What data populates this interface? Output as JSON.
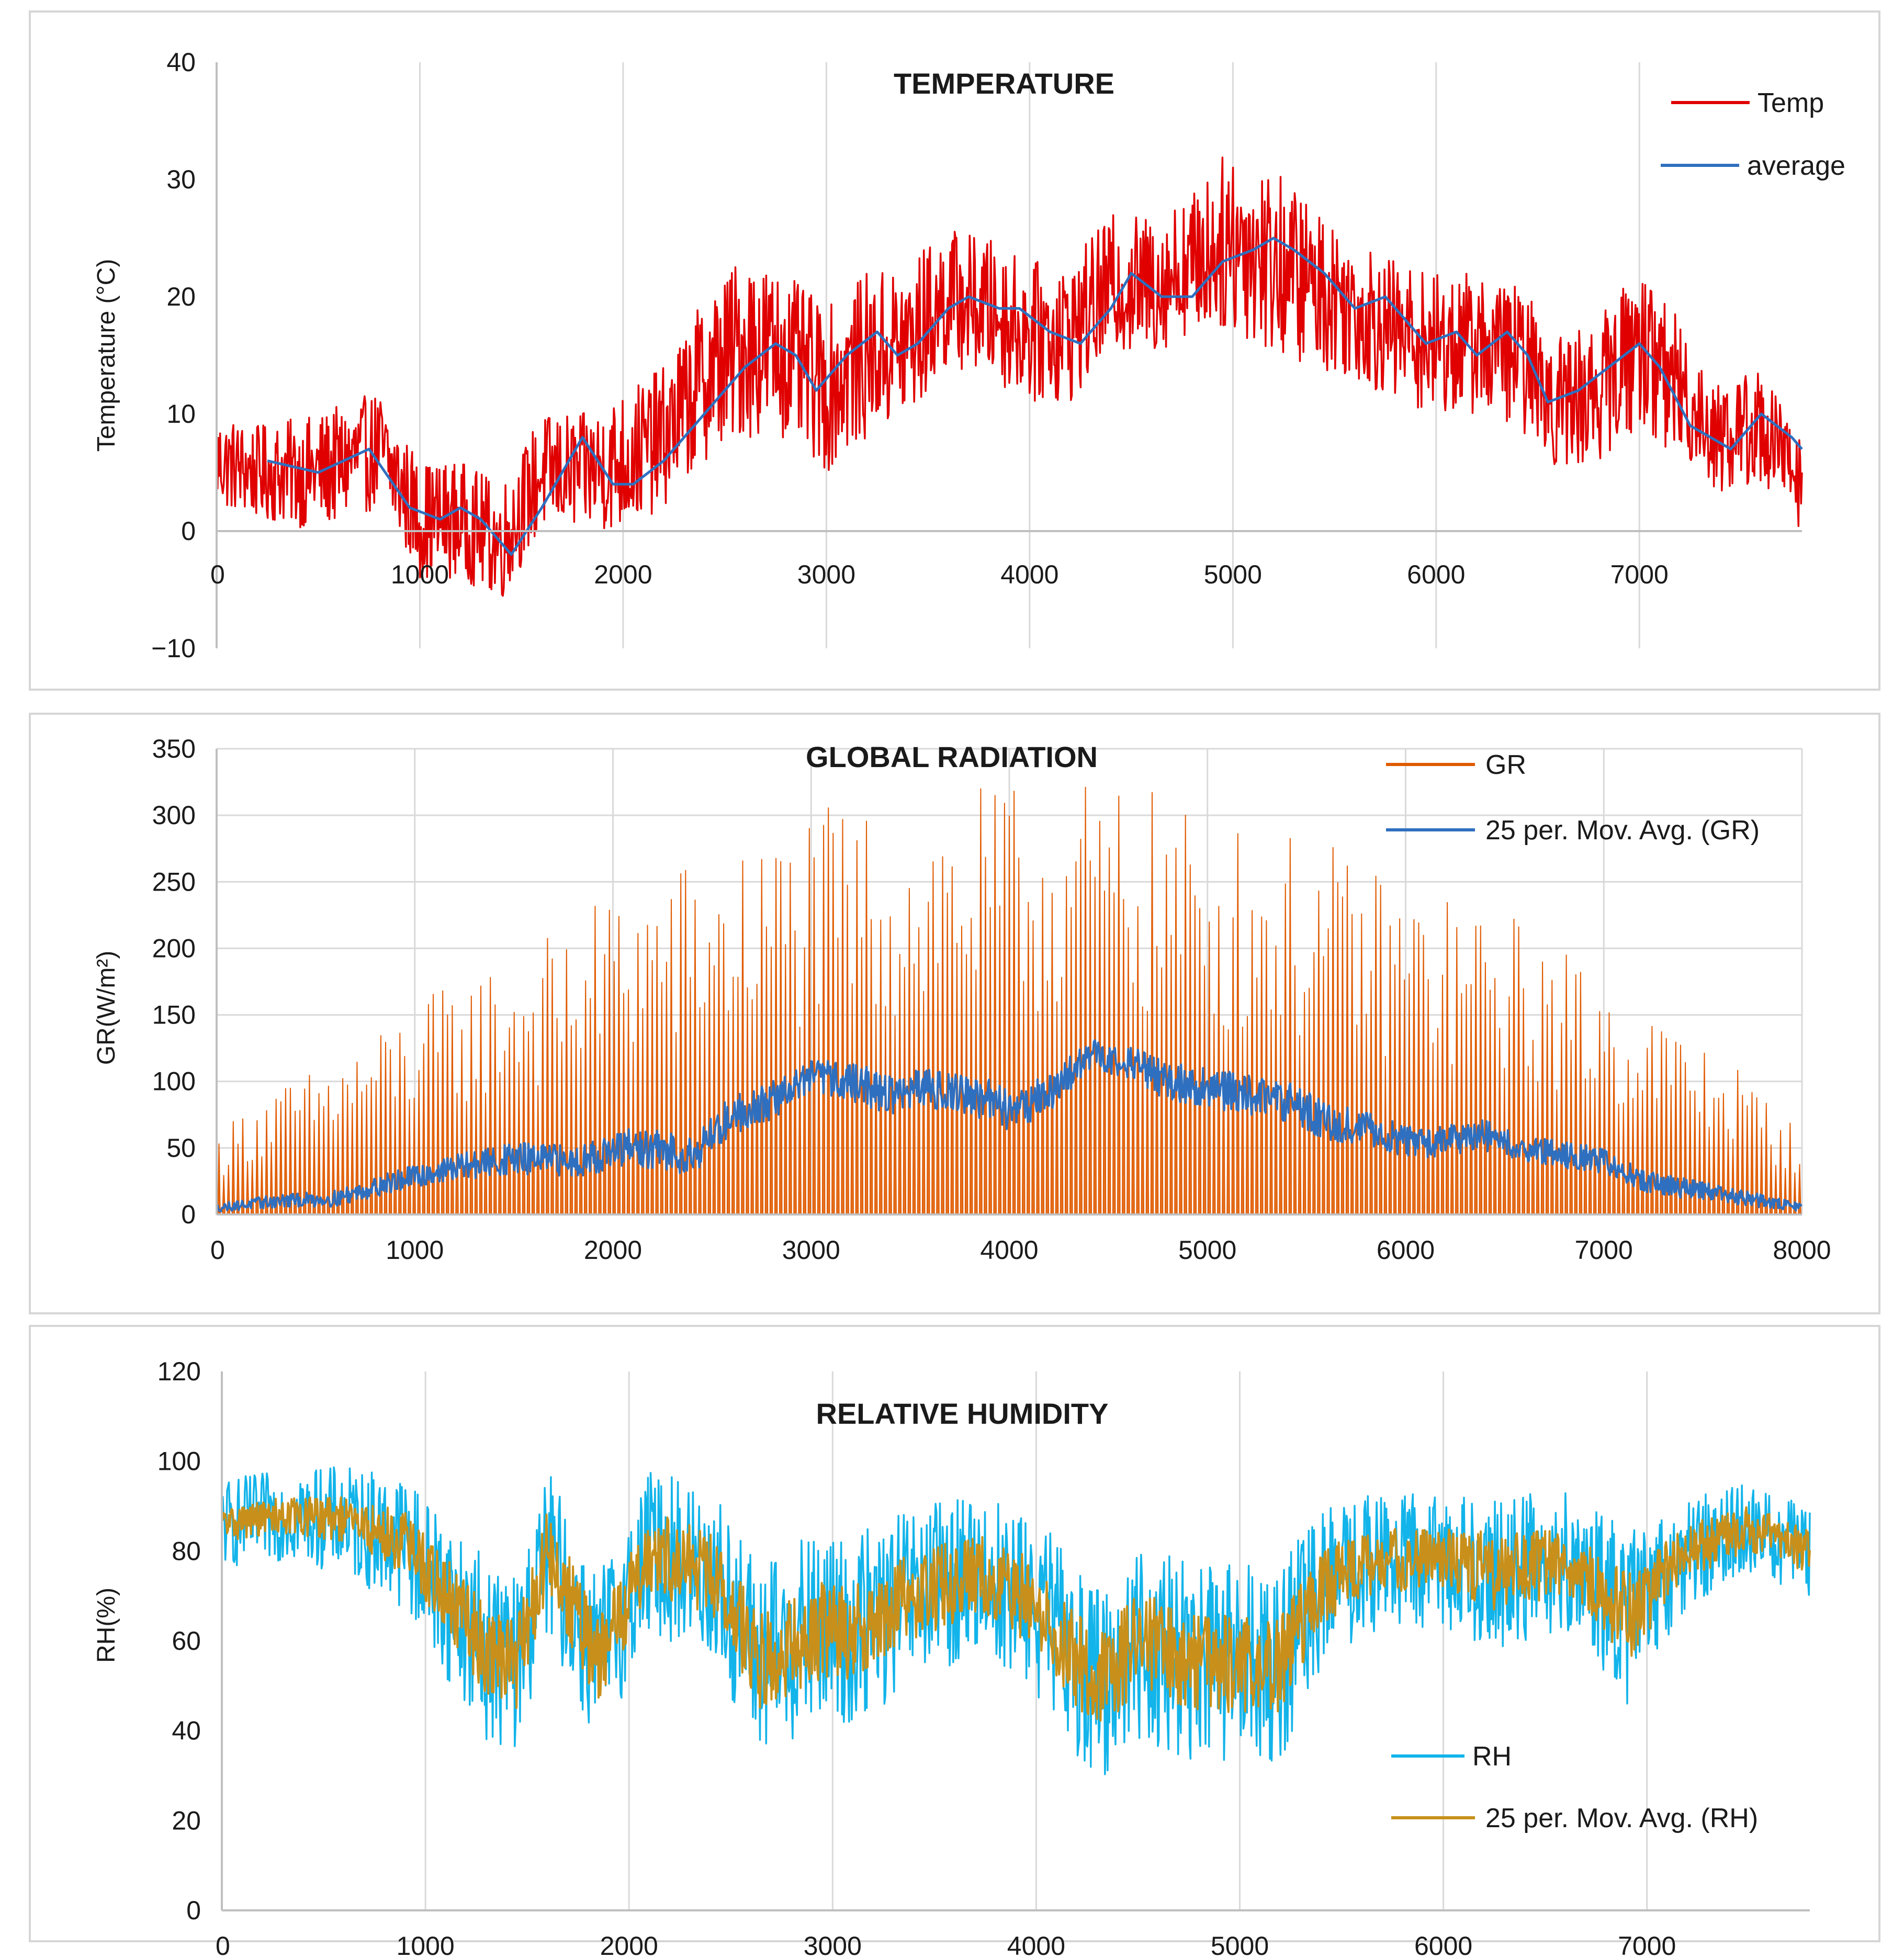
{
  "chart_data": [
    {
      "type": "line",
      "title": "TEMPERATURE",
      "ylabel": "Temperature (°C)",
      "xlabel": "",
      "xlim": [
        0,
        7800
      ],
      "ylim": [
        -10,
        40
      ],
      "x_ticks": [
        0,
        1000,
        2000,
        3000,
        4000,
        5000,
        6000,
        7000
      ],
      "y_ticks": [
        -10,
        0,
        10,
        20,
        30,
        40
      ],
      "y_tick_labels": [
        "−10",
        "0",
        "10",
        "20",
        "30",
        "40"
      ],
      "grid": "vertical",
      "legend_position": "top-right",
      "series": [
        {
          "name": "Temp",
          "color": "#e00000",
          "style": "noisy-hourly",
          "x": [
            0,
            200,
            500,
            800,
            1000,
            1200,
            1400,
            1600,
            1800,
            2000,
            2200,
            2400,
            2600,
            2800,
            3000,
            3200,
            3400,
            3600,
            3800,
            4000,
            4200,
            4400,
            4600,
            4800,
            5000,
            5200,
            5400,
            5600,
            5800,
            6000,
            6200,
            6400,
            6600,
            6800,
            7000,
            7200,
            7400,
            7600,
            7800
          ],
          "center": [
            6,
            5,
            5,
            7,
            1,
            1,
            -1,
            5,
            5,
            6,
            8,
            13,
            16,
            15,
            12,
            15,
            16,
            20,
            19,
            17,
            17,
            21,
            21,
            23,
            25,
            23,
            21,
            19,
            17,
            16,
            16,
            15,
            11,
            12,
            16,
            12,
            8,
            9,
            4
          ],
          "spread": [
            4,
            4,
            5,
            5,
            5,
            5,
            5,
            5,
            5,
            6,
            6,
            7,
            8,
            7,
            7,
            7,
            7,
            6,
            6,
            6,
            6,
            6,
            6,
            6,
            8,
            8,
            7,
            6,
            6,
            6,
            6,
            6,
            6,
            6,
            7,
            6,
            5,
            5,
            4
          ]
        },
        {
          "name": "average",
          "color": "#2f6fbf",
          "style": "smooth",
          "x": [
            250,
            500,
            750,
            950,
            1100,
            1200,
            1300,
            1450,
            1600,
            1800,
            1950,
            2050,
            2200,
            2450,
            2600,
            2750,
            2850,
            2950,
            3100,
            3250,
            3350,
            3450,
            3600,
            3700,
            3850,
            3950,
            4100,
            4250,
            4400,
            4500,
            4650,
            4800,
            4950,
            5100,
            5200,
            5300,
            5450,
            5600,
            5750,
            5850,
            5950,
            6100,
            6200,
            6350,
            6450,
            6550,
            6700,
            6850,
            7000,
            7100,
            7250,
            7350,
            7450,
            7600,
            7750,
            7800
          ],
          "y": [
            6,
            5,
            7,
            2,
            1,
            2,
            1,
            -2,
            2,
            8,
            4,
            4,
            6,
            11,
            14,
            16,
            15,
            12,
            15,
            17,
            15,
            16,
            19,
            20,
            19,
            19,
            17,
            16,
            19,
            22,
            20,
            20,
            23,
            24,
            25,
            24,
            22,
            19,
            20,
            18,
            16,
            17,
            15,
            17,
            15,
            11,
            12,
            14,
            16,
            14,
            9,
            8,
            7,
            10,
            8,
            7
          ]
        }
      ]
    },
    {
      "type": "line",
      "title": "GLOBAL RADIATION",
      "ylabel": "GR(W/m²)",
      "xlabel": "",
      "xlim": [
        0,
        8000
      ],
      "ylim": [
        0,
        350
      ],
      "x_ticks": [
        0,
        1000,
        2000,
        3000,
        4000,
        5000,
        6000,
        7000,
        8000
      ],
      "y_ticks": [
        0,
        50,
        100,
        150,
        200,
        250,
        300,
        350
      ],
      "grid": "both",
      "legend_position": "top-right",
      "series": [
        {
          "name": "GR",
          "color": "#e05a00",
          "style": "spiky-daily",
          "x": [
            0,
            200,
            500,
            800,
            1000,
            1300,
            1500,
            1800,
            2000,
            2300,
            2600,
            2900,
            3200,
            3500,
            3800,
            4100,
            4400,
            4700,
            5000,
            5300,
            5600,
            5900,
            6200,
            6500,
            6800,
            7100,
            7400,
            7700,
            8000
          ],
          "envelope": [
            60,
            90,
            110,
            140,
            160,
            185,
            200,
            220,
            250,
            265,
            275,
            300,
            310,
            310,
            320,
            325,
            330,
            320,
            300,
            290,
            280,
            260,
            240,
            230,
            200,
            170,
            140,
            110,
            60
          ]
        },
        {
          "name": "25 per. Mov. Avg. (GR)",
          "color": "#2f6fbf",
          "style": "noisy-hourly",
          "x": [
            0,
            300,
            600,
            900,
            1200,
            1500,
            1800,
            2100,
            2400,
            2600,
            2800,
            3000,
            3200,
            3400,
            3600,
            3800,
            4000,
            4200,
            4400,
            4600,
            4800,
            5000,
            5200,
            5400,
            5600,
            5800,
            6000,
            6200,
            6400,
            6600,
            6800,
            7000,
            7200,
            7400,
            7600,
            7800,
            8000
          ],
          "center": [
            5,
            10,
            12,
            25,
            35,
            42,
            40,
            50,
            45,
            75,
            85,
            105,
            100,
            90,
            95,
            90,
            80,
            90,
            120,
            115,
            100,
            95,
            90,
            85,
            70,
            65,
            55,
            55,
            60,
            50,
            45,
            40,
            25,
            20,
            15,
            10,
            5
          ],
          "spread": [
            3,
            5,
            6,
            8,
            10,
            12,
            12,
            15,
            15,
            15,
            15,
            12,
            15,
            15,
            15,
            15,
            18,
            15,
            12,
            12,
            15,
            15,
            15,
            15,
            15,
            12,
            12,
            12,
            12,
            10,
            10,
            10,
            8,
            8,
            6,
            5,
            3
          ]
        }
      ]
    },
    {
      "type": "line",
      "title": "RELATIVE HUMIDITY",
      "ylabel": "RH(%)",
      "xlabel": "",
      "xlim": [
        0,
        7800
      ],
      "ylim": [
        0,
        120
      ],
      "x_ticks": [
        0,
        1000,
        2000,
        3000,
        4000,
        5000,
        6000,
        7000
      ],
      "y_ticks": [
        0,
        20,
        40,
        60,
        80,
        100,
        120
      ],
      "grid": "vertical",
      "legend_position": "bottom-right",
      "series": [
        {
          "name": "RH",
          "color": "#12b4ea",
          "style": "noisy-hourly",
          "x": [
            0,
            300,
            600,
            900,
            1100,
            1300,
            1450,
            1600,
            1850,
            2100,
            2400,
            2650,
            2900,
            3100,
            3400,
            3700,
            4000,
            4300,
            4500,
            4800,
            5000,
            5200,
            5400,
            5700,
            6000,
            6300,
            6600,
            6900,
            7200,
            7500,
            7800
          ],
          "center": [
            86,
            88,
            87,
            82,
            70,
            58,
            55,
            80,
            55,
            80,
            75,
            55,
            62,
            62,
            70,
            75,
            68,
            50,
            60,
            55,
            55,
            55,
            72,
            78,
            78,
            75,
            78,
            65,
            80,
            85,
            80
          ],
          "spread": [
            10,
            10,
            12,
            15,
            18,
            20,
            20,
            18,
            20,
            18,
            20,
            22,
            22,
            22,
            20,
            18,
            20,
            22,
            22,
            22,
            22,
            22,
            18,
            15,
            15,
            18,
            15,
            20,
            12,
            10,
            10
          ]
        },
        {
          "name": "25 per. Mov. Avg. (RH)",
          "color": "#c8901a",
          "style": "noisy-hourly",
          "x": [
            0,
            300,
            600,
            900,
            1100,
            1300,
            1450,
            1600,
            1850,
            2100,
            2400,
            2650,
            2900,
            3100,
            3400,
            3700,
            4000,
            4300,
            4500,
            4800,
            5000,
            5200,
            5400,
            5700,
            6000,
            6300,
            6600,
            6900,
            7200,
            7500,
            7800
          ],
          "center": [
            86,
            88,
            87,
            82,
            70,
            58,
            55,
            80,
            55,
            80,
            75,
            55,
            62,
            62,
            70,
            75,
            68,
            50,
            60,
            55,
            55,
            55,
            72,
            78,
            78,
            75,
            78,
            65,
            80,
            85,
            80
          ],
          "spread": [
            4,
            4,
            5,
            7,
            9,
            10,
            10,
            9,
            10,
            9,
            10,
            11,
            11,
            11,
            10,
            9,
            10,
            11,
            11,
            11,
            11,
            11,
            9,
            7,
            7,
            9,
            7,
            10,
            6,
            5,
            5
          ]
        }
      ]
    }
  ]
}
